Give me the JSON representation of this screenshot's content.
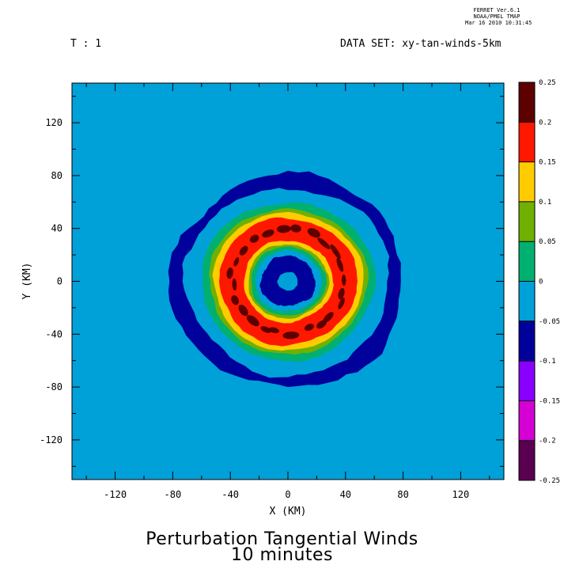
{
  "header": {
    "ferret_lines": [
      "FERRET  Ver.6.1",
      "NOAA/PMEL TMAP",
      "Mar 16 2010 10:31:45"
    ],
    "time_label": "T : 1",
    "dataset_label": "DATA SET: xy-tan-winds-5km"
  },
  "footer": {
    "title_line1": "Perturbation Tangential Winds",
    "title_line2": "10 minutes"
  },
  "chart_data": {
    "type": "contour",
    "xlabel": "X (KM)",
    "ylabel": "Y (KM)",
    "xlim": [
      -150,
      150
    ],
    "ylim": [
      -150,
      150
    ],
    "xticks": [
      -120,
      -80,
      -40,
      0,
      40,
      80,
      120
    ],
    "yticks": [
      120,
      80,
      40,
      0,
      -40,
      -80,
      -120
    ],
    "background_level": "0 to -0.05",
    "colorbar": {
      "levels": [
        0.25,
        0.2,
        0.15,
        0.1,
        0.05,
        0,
        -0.05,
        -0.1,
        -0.15,
        -0.2,
        -0.25
      ],
      "colors": [
        "#5c0000",
        "#ff1800",
        "#ffcc00",
        "#70b000",
        "#00b070",
        "#00a0d8",
        "#00009a",
        "#8a00ff",
        "#d400d4",
        "#5a0050"
      ]
    },
    "rings": [
      {
        "desc": "inner negative core",
        "radius_km": [
          0,
          20
        ],
        "value": "-0.05 to -0.1"
      },
      {
        "desc": "positive ring peak",
        "radius_km": [
          30,
          50
        ],
        "value": "0.2 to 0.25"
      },
      {
        "desc": "outer negative ring",
        "radius_km": [
          70,
          80
        ],
        "value": "-0.05 to -0.1"
      }
    ],
    "contour_colors": {
      "background": "#00a0d8",
      "neg1": "#00009a",
      "pos1": "#00b070",
      "pos2": "#70b000",
      "pos3": "#ffcc00",
      "pos4": "#ff1800",
      "pos5": "#5c0000"
    }
  }
}
